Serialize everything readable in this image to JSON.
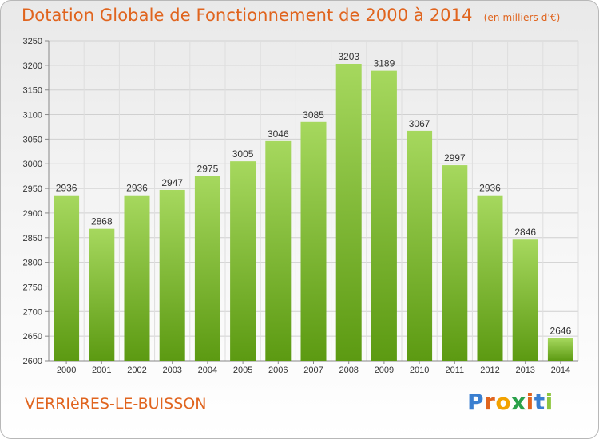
{
  "header": {
    "title": "Dotation Globale de Fonctionnement de 2000 à 2014",
    "unit": "(en milliers d'€)"
  },
  "footer": {
    "city": "VERRIèRES-LE-BUISSON",
    "logo_letters": [
      "P",
      "r",
      "o",
      "x",
      "i",
      "t",
      "i"
    ],
    "logo_colors": [
      "#3a7fd0",
      "#e0641e",
      "#f2a200",
      "#2aa14a",
      "#e0641e",
      "#3a7fd0",
      "#8dc63f"
    ]
  },
  "chart_data": {
    "type": "bar",
    "title": "Dotation Globale de Fonctionnement de 2000 à 2014",
    "categories": [
      "2000",
      "2001",
      "2002",
      "2003",
      "2004",
      "2005",
      "2006",
      "2007",
      "2008",
      "2009",
      "2010",
      "2011",
      "2012",
      "2013",
      "2014"
    ],
    "values": [
      2936,
      2868,
      2936,
      2947,
      2975,
      3005,
      3046,
      3085,
      3203,
      3189,
      3067,
      2997,
      2936,
      2846,
      2646
    ],
    "ylim": [
      2600,
      3250
    ],
    "yticks": [
      2600,
      2650,
      2700,
      2750,
      2800,
      2850,
      2900,
      2950,
      3000,
      3050,
      3100,
      3150,
      3200,
      3250
    ],
    "grid": true,
    "bar_color": "#7dbf2e"
  }
}
